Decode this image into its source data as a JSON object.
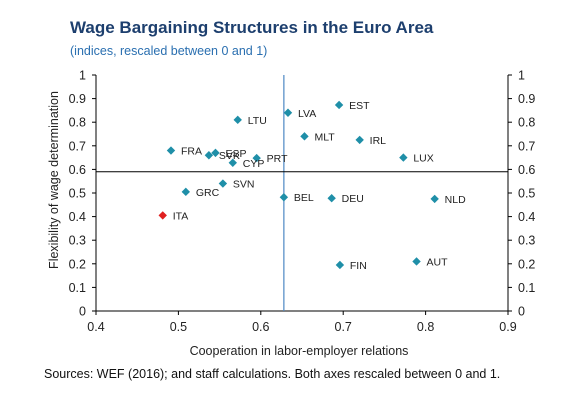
{
  "header": {
    "title": "Wage Bargaining Structures in the Euro Area",
    "subtitle": "(indices, rescaled between 0 and 1)"
  },
  "footer": {
    "source": "Sources: WEF (2016); and staff calculations. Both axes rescaled between 0 and 1."
  },
  "colors": {
    "marker": "#1f8fa8",
    "highlight": "#e02020",
    "vline": "#4d88c4",
    "hline": "#000000"
  },
  "chart_data": {
    "type": "scatter",
    "title": "Wage Bargaining Structures in the Euro Area",
    "subtitle": "(indices, rescaled between 0 and 1)",
    "xlabel": "Cooperation in labor-employer relations",
    "ylabel": "Flexibility of wage determination",
    "xlim": [
      0.4,
      0.9
    ],
    "ylim": [
      0,
      1
    ],
    "xticks": [
      "0.4",
      "0.5",
      "0.6",
      "0.7",
      "0.8",
      "0.9"
    ],
    "yticks": [
      "0",
      "0.1",
      "0.2",
      "0.3",
      "0.4",
      "0.5",
      "0.6",
      "0.7",
      "0.8",
      "0.9",
      "1"
    ],
    "secondary_y_axis": true,
    "reference_lines": {
      "vertical_x": 0.628,
      "horizontal_y": 0.59
    },
    "grid": false,
    "points": [
      {
        "label": "EST",
        "x": 0.695,
        "y": 0.873
      },
      {
        "label": "LVA",
        "x": 0.633,
        "y": 0.84
      },
      {
        "label": "LTU",
        "x": 0.572,
        "y": 0.81
      },
      {
        "label": "MLT",
        "x": 0.653,
        "y": 0.74
      },
      {
        "label": "IRL",
        "x": 0.72,
        "y": 0.725
      },
      {
        "label": "FRA",
        "x": 0.491,
        "y": 0.68
      },
      {
        "label": "ESP",
        "x": 0.545,
        "y": 0.67
      },
      {
        "label": "SVK",
        "x": 0.537,
        "y": 0.66
      },
      {
        "label": "LUX",
        "x": 0.773,
        "y": 0.65
      },
      {
        "label": "PRT",
        "x": 0.595,
        "y": 0.648
      },
      {
        "label": "CYP",
        "x": 0.566,
        "y": 0.628
      },
      {
        "label": "SVN",
        "x": 0.554,
        "y": 0.54
      },
      {
        "label": "GRC",
        "x": 0.509,
        "y": 0.505
      },
      {
        "label": "BEL",
        "x": 0.628,
        "y": 0.482
      },
      {
        "label": "DEU",
        "x": 0.686,
        "y": 0.478
      },
      {
        "label": "NLD",
        "x": 0.811,
        "y": 0.475
      },
      {
        "label": "ITA",
        "x": 0.481,
        "y": 0.405,
        "highlight": true
      },
      {
        "label": "AUT",
        "x": 0.789,
        "y": 0.21
      },
      {
        "label": "FIN",
        "x": 0.696,
        "y": 0.195
      }
    ]
  }
}
